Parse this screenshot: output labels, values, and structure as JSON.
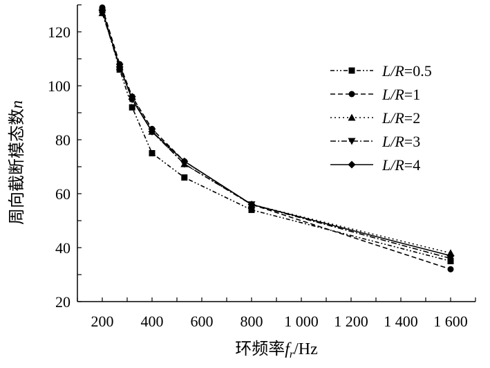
{
  "chart_data": {
    "type": "line",
    "title": "",
    "xlabel_main": "环频率",
    "xlabel_sym": "f",
    "xlabel_sub": "r",
    "xlabel_unit": "/Hz",
    "ylabel_main": "周向截断模态数",
    "ylabel_sym": "n",
    "xlim": [
      100,
      1700
    ],
    "ylim": [
      20,
      130
    ],
    "xticks": [
      200,
      400,
      600,
      800,
      1000,
      1200,
      1400,
      1600
    ],
    "xtick_labels": [
      "200",
      "400",
      "600",
      "800",
      "1 000",
      "1 200",
      "1 400",
      "1 600"
    ],
    "yticks": [
      20,
      40,
      60,
      80,
      100,
      120
    ],
    "ytick_labels": [
      "20",
      "40",
      "60",
      "80",
      "100",
      "120"
    ],
    "grid": false,
    "legend_position": "top-right",
    "x": [
      200,
      270,
      320,
      400,
      530,
      800,
      1600
    ],
    "series": [
      {
        "name": "L/R=0.5",
        "prefix": "L/R",
        "value": "=0.5",
        "marker": "square",
        "dash": "6 3 2 3 2 3",
        "values": [
          128,
          106,
          92,
          75,
          66,
          54,
          35
        ]
      },
      {
        "name": "L/R=1",
        "prefix": "L/R",
        "value": "=1",
        "marker": "circle",
        "dash": "7 4",
        "values": [
          129,
          108,
          96,
          84,
          72,
          56,
          32
        ]
      },
      {
        "name": "L/R=2",
        "prefix": "L/R",
        "value": "=2",
        "marker": "triangle-up",
        "dash": "2 4",
        "values": [
          127,
          107,
          96,
          83,
          71,
          56,
          38
        ]
      },
      {
        "name": "L/R=3",
        "prefix": "L/R",
        "value": "=3",
        "marker": "triangle-down",
        "dash": "8 3 2 3",
        "values": [
          127,
          107,
          95,
          83,
          71,
          56,
          36
        ]
      },
      {
        "name": "L/R=4",
        "prefix": "L/R",
        "value": "=4",
        "marker": "diamond",
        "dash": "",
        "values": [
          128,
          107,
          95,
          83,
          72,
          56,
          37
        ]
      }
    ]
  }
}
